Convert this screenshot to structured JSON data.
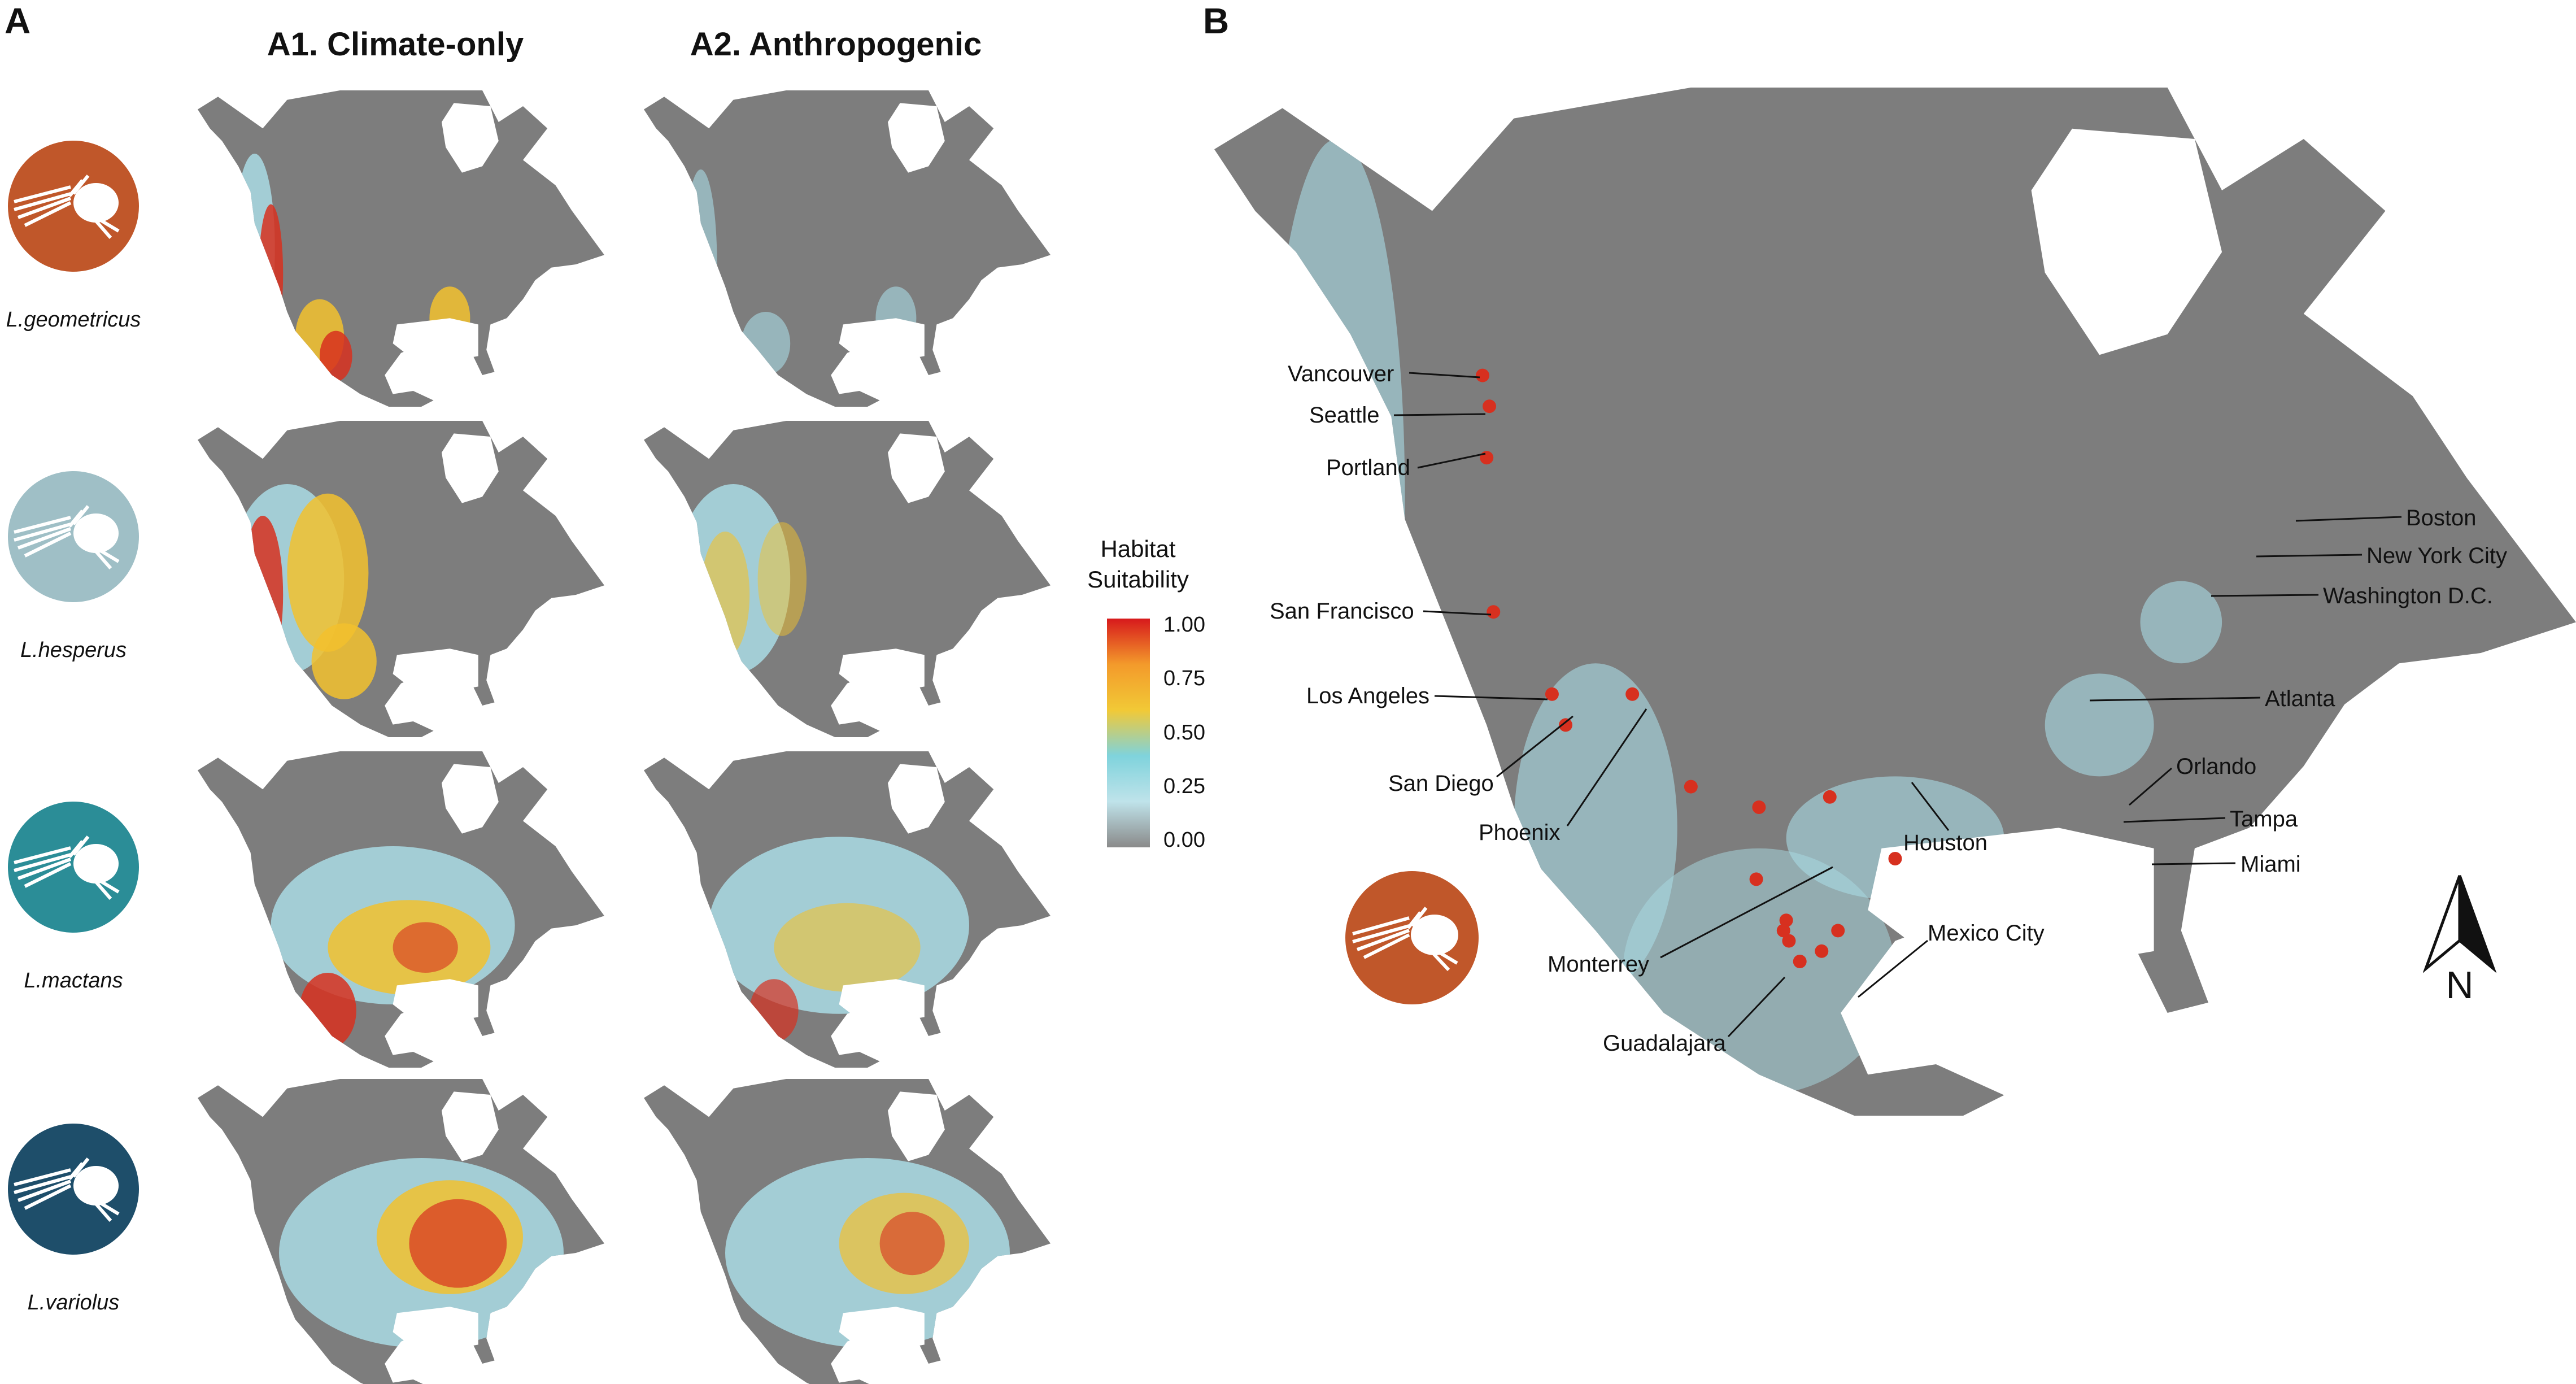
{
  "panels": {
    "a_label": "A",
    "b_label": "B",
    "col1_title": "A1. Climate-only",
    "col2_title": "A2. Anthropogenic"
  },
  "species": [
    {
      "name": "L.geometricus",
      "color": "#C0572A"
    },
    {
      "name": "L.hesperus",
      "color": "#9FBFC6"
    },
    {
      "name": "L.mactans",
      "color": "#2B8D97"
    },
    {
      "name": "L.variolus",
      "color": "#1E4E6A"
    }
  ],
  "legend": {
    "title_line1": "Habitat",
    "title_line2": "Suitability",
    "ticks": [
      "1.00",
      "0.75",
      "0.50",
      "0.25",
      "0.00"
    ],
    "colors": [
      "#d7191c",
      "#f39a2b",
      "#f2c936",
      "#7fd3dc",
      "#bfe3ea",
      "#8a8a8a"
    ]
  },
  "cities": [
    "Vancouver",
    "Seattle",
    "Portland",
    "San Francisco",
    "Los Angeles",
    "San Diego",
    "Phoenix",
    "Monterrey",
    "Guadalajara",
    "Houston",
    "Mexico City",
    "Boston",
    "New York City",
    "Washington D.C.",
    "Atlanta",
    "Orlando",
    "Tampa",
    "Miami"
  ],
  "north_arrow": "N",
  "map_colors": {
    "land": "#7d7d7d",
    "water": "#ffffff",
    "low": "#a9dbe4",
    "mid": "#f2c12e",
    "high": "#d7301f"
  }
}
